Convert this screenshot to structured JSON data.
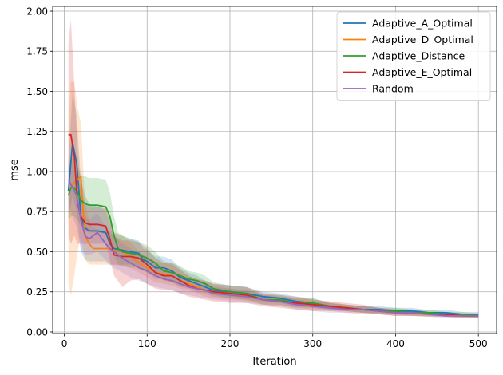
{
  "chart_data": {
    "type": "line",
    "title": "",
    "xlabel": "Iteration",
    "ylabel": "mse",
    "xlim": [
      -14,
      522
    ],
    "ylim": [
      -0.01,
      2.03
    ],
    "xticks": [
      0,
      100,
      200,
      300,
      400,
      500
    ],
    "yticks": [
      0.0,
      0.25,
      0.5,
      0.75,
      1.0,
      1.25,
      1.5,
      1.75,
      2.0
    ],
    "xtick_labels": [
      "0",
      "100",
      "200",
      "300",
      "400",
      "500"
    ],
    "ytick_labels": [
      "0.00",
      "0.25",
      "0.50",
      "0.75",
      "1.00",
      "1.25",
      "1.50",
      "1.75",
      "2.00"
    ],
    "grid": true,
    "legend_position": "top-right",
    "series": [
      {
        "name": "Adaptive_A_Optimal",
        "color": "#1f77b4",
        "x": [
          5,
          10,
          15,
          20,
          25,
          30,
          40,
          50,
          55,
          60,
          70,
          80,
          90,
          95,
          100,
          110,
          120,
          130,
          140,
          150,
          160,
          170,
          180,
          200,
          220,
          240,
          260,
          280,
          300,
          320,
          340,
          360,
          380,
          400,
          420,
          440,
          460,
          480,
          500
        ],
        "y": [
          0.88,
          1.18,
          1.05,
          0.72,
          0.65,
          0.63,
          0.63,
          0.62,
          0.55,
          0.52,
          0.51,
          0.5,
          0.49,
          0.45,
          0.44,
          0.4,
          0.4,
          0.38,
          0.34,
          0.32,
          0.3,
          0.28,
          0.26,
          0.25,
          0.24,
          0.22,
          0.21,
          0.19,
          0.18,
          0.16,
          0.15,
          0.14,
          0.14,
          0.13,
          0.13,
          0.12,
          0.12,
          0.11,
          0.11
        ],
        "lower": [
          0.7,
          0.85,
          0.75,
          0.5,
          0.45,
          0.44,
          0.44,
          0.44,
          0.42,
          0.42,
          0.42,
          0.42,
          0.41,
          0.38,
          0.37,
          0.33,
          0.33,
          0.31,
          0.28,
          0.27,
          0.25,
          0.24,
          0.22,
          0.21,
          0.2,
          0.19,
          0.18,
          0.16,
          0.15,
          0.14,
          0.13,
          0.12,
          0.12,
          0.11,
          0.11,
          0.105,
          0.1,
          0.095,
          0.095
        ],
        "upper": [
          1.05,
          1.5,
          1.35,
          0.95,
          0.85,
          0.8,
          0.78,
          0.76,
          0.68,
          0.62,
          0.6,
          0.58,
          0.57,
          0.52,
          0.51,
          0.47,
          0.47,
          0.45,
          0.4,
          0.37,
          0.35,
          0.32,
          0.3,
          0.29,
          0.28,
          0.25,
          0.24,
          0.22,
          0.21,
          0.18,
          0.17,
          0.16,
          0.16,
          0.15,
          0.15,
          0.135,
          0.14,
          0.125,
          0.125
        ]
      },
      {
        "name": "Adaptive_D_Optimal",
        "color": "#ff7f0e",
        "x": [
          5,
          8,
          12,
          16,
          20,
          25,
          30,
          35,
          40,
          50,
          55,
          60,
          70,
          80,
          90,
          100,
          110,
          120,
          130,
          140,
          150,
          160,
          170,
          180,
          200,
          220,
          240,
          260,
          280,
          300,
          320,
          340,
          360,
          380,
          400,
          420,
          440,
          460,
          480,
          500
        ],
        "y": [
          0.85,
          0.9,
          0.93,
          0.95,
          0.97,
          0.6,
          0.55,
          0.52,
          0.52,
          0.52,
          0.52,
          0.51,
          0.5,
          0.47,
          0.43,
          0.4,
          0.37,
          0.36,
          0.35,
          0.32,
          0.3,
          0.28,
          0.26,
          0.25,
          0.23,
          0.22,
          0.2,
          0.19,
          0.18,
          0.17,
          0.16,
          0.15,
          0.14,
          0.13,
          0.12,
          0.12,
          0.11,
          0.11,
          0.1,
          0.1
        ],
        "lower": [
          0.3,
          0.23,
          0.35,
          0.5,
          0.6,
          0.45,
          0.42,
          0.42,
          0.42,
          0.42,
          0.42,
          0.42,
          0.41,
          0.4,
          0.37,
          0.34,
          0.31,
          0.3,
          0.29,
          0.27,
          0.26,
          0.24,
          0.22,
          0.21,
          0.2,
          0.19,
          0.17,
          0.16,
          0.15,
          0.14,
          0.13,
          0.13,
          0.12,
          0.11,
          0.1,
          0.1,
          0.095,
          0.095,
          0.085,
          0.085
        ],
        "upper": [
          1.25,
          1.56,
          1.56,
          1.4,
          1.3,
          0.8,
          0.7,
          0.65,
          0.64,
          0.63,
          0.63,
          0.62,
          0.6,
          0.56,
          0.5,
          0.47,
          0.44,
          0.43,
          0.42,
          0.38,
          0.35,
          0.33,
          0.31,
          0.29,
          0.27,
          0.26,
          0.24,
          0.22,
          0.21,
          0.2,
          0.19,
          0.17,
          0.16,
          0.15,
          0.14,
          0.14,
          0.125,
          0.125,
          0.115,
          0.115
        ]
      },
      {
        "name": "Adaptive_Distance",
        "color": "#2ca02c",
        "x": [
          5,
          8,
          12,
          16,
          20,
          25,
          30,
          40,
          50,
          55,
          60,
          65,
          70,
          80,
          90,
          95,
          100,
          110,
          120,
          130,
          140,
          150,
          160,
          170,
          180,
          200,
          220,
          240,
          260,
          280,
          300,
          320,
          340,
          360,
          380,
          400,
          420,
          440,
          460,
          480,
          500
        ],
        "y": [
          0.85,
          0.9,
          0.9,
          0.87,
          0.82,
          0.8,
          0.79,
          0.79,
          0.78,
          0.72,
          0.6,
          0.52,
          0.5,
          0.49,
          0.48,
          0.47,
          0.46,
          0.43,
          0.38,
          0.37,
          0.35,
          0.33,
          0.32,
          0.3,
          0.27,
          0.25,
          0.24,
          0.2,
          0.2,
          0.18,
          0.18,
          0.16,
          0.15,
          0.14,
          0.13,
          0.13,
          0.12,
          0.12,
          0.11,
          0.11,
          0.1
        ],
        "lower": [
          0.7,
          0.72,
          0.72,
          0.7,
          0.66,
          0.63,
          0.62,
          0.62,
          0.61,
          0.57,
          0.48,
          0.42,
          0.41,
          0.4,
          0.4,
          0.39,
          0.38,
          0.36,
          0.32,
          0.31,
          0.29,
          0.28,
          0.27,
          0.25,
          0.23,
          0.21,
          0.2,
          0.17,
          0.17,
          0.15,
          0.15,
          0.14,
          0.13,
          0.12,
          0.11,
          0.11,
          0.1,
          0.1,
          0.095,
          0.095,
          0.085
        ],
        "upper": [
          1.0,
          1.08,
          1.08,
          1.03,
          0.98,
          0.97,
          0.96,
          0.96,
          0.95,
          0.87,
          0.72,
          0.62,
          0.6,
          0.58,
          0.56,
          0.55,
          0.54,
          0.5,
          0.44,
          0.43,
          0.41,
          0.38,
          0.37,
          0.35,
          0.31,
          0.29,
          0.28,
          0.23,
          0.23,
          0.21,
          0.21,
          0.18,
          0.17,
          0.16,
          0.15,
          0.15,
          0.14,
          0.14,
          0.125,
          0.125,
          0.115
        ]
      },
      {
        "name": "Adaptive_E_Optimal",
        "color": "#d62728",
        "x": [
          5,
          8,
          12,
          16,
          20,
          25,
          30,
          40,
          50,
          55,
          60,
          70,
          80,
          90,
          100,
          110,
          120,
          130,
          140,
          150,
          160,
          170,
          180,
          200,
          220,
          240,
          260,
          280,
          300,
          320,
          340,
          360,
          380,
          400,
          420,
          440,
          460,
          480,
          500
        ],
        "y": [
          1.23,
          1.23,
          1.1,
          0.8,
          0.72,
          0.68,
          0.67,
          0.67,
          0.66,
          0.58,
          0.48,
          0.47,
          0.47,
          0.46,
          0.42,
          0.37,
          0.35,
          0.35,
          0.32,
          0.29,
          0.27,
          0.26,
          0.25,
          0.24,
          0.23,
          0.2,
          0.19,
          0.18,
          0.17,
          0.16,
          0.15,
          0.14,
          0.13,
          0.12,
          0.12,
          0.11,
          0.11,
          0.1,
          0.1
        ],
        "lower": [
          0.6,
          0.55,
          0.6,
          0.55,
          0.55,
          0.55,
          0.55,
          0.55,
          0.55,
          0.45,
          0.35,
          0.28,
          0.32,
          0.33,
          0.3,
          0.27,
          0.26,
          0.26,
          0.24,
          0.22,
          0.21,
          0.2,
          0.19,
          0.18,
          0.18,
          0.16,
          0.15,
          0.14,
          0.13,
          0.13,
          0.12,
          0.11,
          0.11,
          0.1,
          0.1,
          0.095,
          0.095,
          0.085,
          0.085
        ],
        "upper": [
          1.8,
          1.95,
          1.55,
          1.15,
          0.9,
          0.8,
          0.78,
          0.78,
          0.77,
          0.7,
          0.6,
          0.57,
          0.57,
          0.56,
          0.52,
          0.46,
          0.43,
          0.43,
          0.39,
          0.35,
          0.33,
          0.32,
          0.3,
          0.29,
          0.28,
          0.24,
          0.23,
          0.22,
          0.2,
          0.19,
          0.18,
          0.17,
          0.15,
          0.14,
          0.14,
          0.125,
          0.125,
          0.115,
          0.115
        ]
      },
      {
        "name": "Random",
        "color": "#9467bd",
        "x": [
          5,
          10,
          15,
          20,
          25,
          30,
          40,
          50,
          55,
          60,
          70,
          80,
          90,
          100,
          110,
          120,
          130,
          140,
          150,
          160,
          170,
          180,
          200,
          220,
          240,
          260,
          280,
          300,
          320,
          340,
          360,
          380,
          400,
          420,
          440,
          460,
          480,
          500
        ],
        "y": [
          0.95,
          0.9,
          0.85,
          0.7,
          0.6,
          0.58,
          0.62,
          0.55,
          0.52,
          0.5,
          0.46,
          0.43,
          0.4,
          0.38,
          0.35,
          0.33,
          0.32,
          0.3,
          0.28,
          0.27,
          0.26,
          0.24,
          0.23,
          0.22,
          0.2,
          0.19,
          0.17,
          0.16,
          0.15,
          0.14,
          0.14,
          0.13,
          0.12,
          0.12,
          0.11,
          0.1,
          0.1,
          0.1
        ],
        "lower": [
          0.8,
          0.72,
          0.65,
          0.52,
          0.48,
          0.48,
          0.5,
          0.45,
          0.42,
          0.4,
          0.37,
          0.34,
          0.32,
          0.3,
          0.28,
          0.27,
          0.26,
          0.24,
          0.23,
          0.22,
          0.21,
          0.2,
          0.19,
          0.18,
          0.17,
          0.16,
          0.14,
          0.13,
          0.12,
          0.12,
          0.12,
          0.11,
          0.1,
          0.1,
          0.095,
          0.085,
          0.085,
          0.085
        ],
        "upper": [
          1.1,
          1.05,
          1.0,
          0.88,
          0.72,
          0.7,
          0.74,
          0.65,
          0.62,
          0.6,
          0.55,
          0.52,
          0.48,
          0.46,
          0.42,
          0.39,
          0.38,
          0.36,
          0.33,
          0.32,
          0.31,
          0.28,
          0.27,
          0.26,
          0.23,
          0.22,
          0.2,
          0.19,
          0.18,
          0.16,
          0.16,
          0.15,
          0.14,
          0.14,
          0.125,
          0.115,
          0.115,
          0.115
        ]
      }
    ]
  }
}
